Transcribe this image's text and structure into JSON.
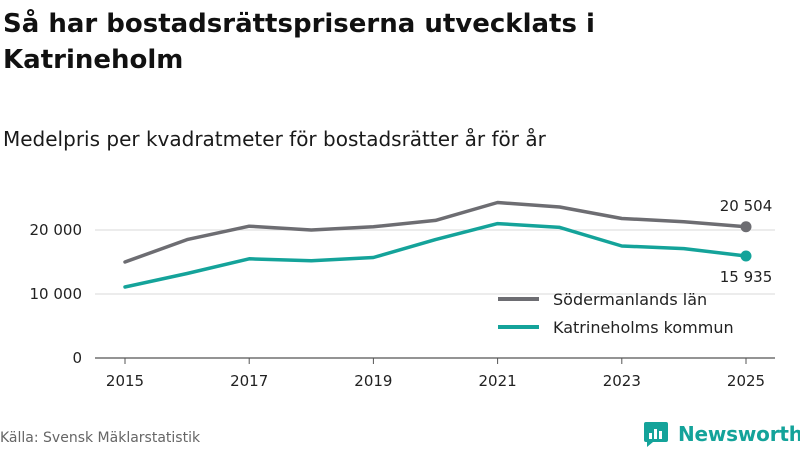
{
  "header": {
    "title": "Så har bostadsrättspriserna utvecklats i Katrineholm",
    "subtitle": "Medelpris per kvadratmeter för bostadsrätter år för år"
  },
  "footer": {
    "source": "Källa: Svensk Mäklarstatistik",
    "brand": "Newsworthy",
    "brand_color": "#14a39a"
  },
  "chart_data": {
    "type": "line",
    "title": "Så har bostadsrättspriserna utvecklats i Katrineholm",
    "subtitle": "Medelpris per kvadratmeter för bostadsrätter år för år",
    "x": [
      2015,
      2016,
      2017,
      2018,
      2019,
      2020,
      2021,
      2022,
      2023,
      2024,
      2025
    ],
    "x_ticks": [
      2015,
      2017,
      2019,
      2021,
      2023,
      2025
    ],
    "x_tick_labels": [
      "2015",
      "2017",
      "2019",
      "2021",
      "2023",
      "2025"
    ],
    "xlim": [
      2015,
      2025
    ],
    "y_ticks": [
      0,
      10000,
      20000
    ],
    "y_tick_labels": [
      "0",
      "10 000",
      "20 000"
    ],
    "ylim": [
      0,
      20000
    ],
    "xlabel": "",
    "ylabel": "",
    "grid": true,
    "legend_position": "bottom-right",
    "series": [
      {
        "name": "Södermanlands län",
        "color": "#6d6d72",
        "values": [
          15000,
          18500,
          20600,
          20000,
          20500,
          21500,
          24300,
          23600,
          21800,
          21300,
          20504
        ],
        "end_label": "20 504"
      },
      {
        "name": "Katrineholms kommun",
        "color": "#14a39a",
        "values": [
          11100,
          13200,
          15500,
          15200,
          15700,
          18500,
          21000,
          20400,
          17500,
          17100,
          15935
        ],
        "end_label": "15 935"
      }
    ]
  }
}
